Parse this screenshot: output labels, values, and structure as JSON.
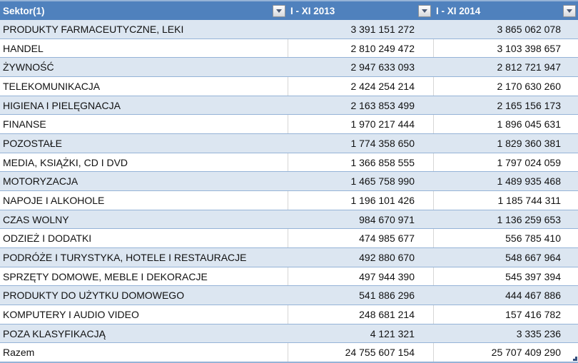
{
  "table": {
    "header": {
      "sector_label": "Sektor(1)",
      "col_2013_label": "I - XI 2013",
      "col_2014_label": "I - XI 2014"
    },
    "rows": [
      {
        "sector": "PRODUKTY FARMACEUTYCZNE, LEKI",
        "y2013": "3 391 151 272",
        "y2014": "3 865 062 078"
      },
      {
        "sector": "HANDEL",
        "y2013": "2 810 249 472",
        "y2014": "3 103 398 657"
      },
      {
        "sector": "ŻYWNOŚĆ",
        "y2013": "2 947 633 093",
        "y2014": "2 812 721 947"
      },
      {
        "sector": "TELEKOMUNIKACJA",
        "y2013": "2 424 254 214",
        "y2014": "2 170 630 260"
      },
      {
        "sector": "HIGIENA I PIELĘGNACJA",
        "y2013": "2 163 853 499",
        "y2014": "2 165 156 173"
      },
      {
        "sector": "FINANSE",
        "y2013": "1 970 217 444",
        "y2014": "1 896 045 631"
      },
      {
        "sector": "POZOSTAŁE",
        "y2013": "1 774 358 650",
        "y2014": "1 829 360 381"
      },
      {
        "sector": "MEDIA, KSIĄŻKI, CD I DVD",
        "y2013": "1 366 858 555",
        "y2014": "1 797 024 059"
      },
      {
        "sector": "MOTORYZACJA",
        "y2013": "1 465 758 990",
        "y2014": "1 489 935 468"
      },
      {
        "sector": "NAPOJE I ALKOHOLE",
        "y2013": "1 196 101 426",
        "y2014": "1 185 744 311"
      },
      {
        "sector": "CZAS WOLNY",
        "y2013": "984 670 971",
        "y2014": "1 136 259 653"
      },
      {
        "sector": "ODZIEŻ I DODATKI",
        "y2013": "474 985 677",
        "y2014": "556 785 410"
      },
      {
        "sector": "PODRÓŻE I TURYSTYKA, HOTELE I RESTAURACJE",
        "y2013": "492 880 670",
        "y2014": "548 667 964"
      },
      {
        "sector": "SPRZĘTY DOMOWE, MEBLE I DEKORACJE",
        "y2013": "497 944 390",
        "y2014": "545 397 394"
      },
      {
        "sector": "PRODUKTY DO UŻYTKU DOMOWEGO",
        "y2013": "541 886 296",
        "y2014": "444 467 886"
      },
      {
        "sector": "KOMPUTERY I AUDIO VIDEO",
        "y2013": "248 681 214",
        "y2014": "157 416 782"
      },
      {
        "sector": "POZA KLASYFIKACJĄ",
        "y2013": "4 121 321",
        "y2014": "3 335 236"
      },
      {
        "sector": "Razem",
        "y2013": "24 755 607 154",
        "y2014": "25 707 409 290"
      }
    ],
    "icons": {
      "filter_dropdown": "filter-dropdown-arrow-icon"
    },
    "colors": {
      "header_bg": "#4F81BD",
      "header_text": "#FFFFFF",
      "band_bg": "#DCE6F1",
      "row_border": "#95B3D7",
      "col_divider": "#D6D6D6",
      "resize_handle": "#35507F"
    }
  }
}
